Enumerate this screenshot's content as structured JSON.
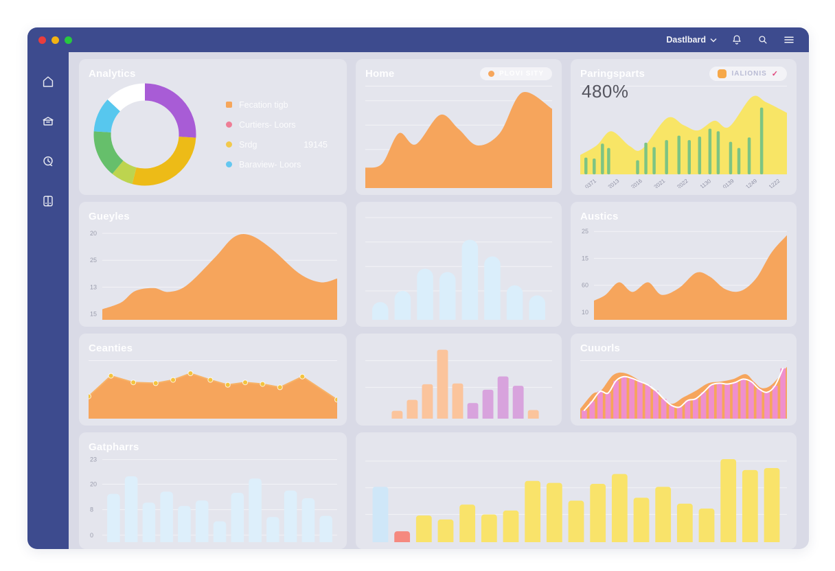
{
  "theme": {
    "navy": "#3d4b8e",
    "content_bg": "#d9dae6",
    "card_bg": "rgba(255,255,255,0.30)",
    "orange": "#f6a55c",
    "yellow": "#f8e566",
    "pink": "#ef8fcd",
    "light_blue": "#daeefb"
  },
  "topbar": {
    "title": "Dastlbard",
    "traffic_lights": [
      "#e93d3d",
      "#f3b313",
      "#27c93f"
    ],
    "icons": [
      "bell-icon",
      "search-icon",
      "menu-icon"
    ]
  },
  "sidebar": {
    "items": [
      "home",
      "archive",
      "history",
      "boards"
    ]
  },
  "cards": {
    "analytics": {
      "title": "Analytics",
      "legend": [
        {
          "label": "Fecation tigb",
          "color": "#f6a65b",
          "shape": "square"
        },
        {
          "label": "Curtiers- Loors",
          "color": "#ee7d96",
          "shape": "circle"
        },
        {
          "label": "Srdg",
          "value": "19145",
          "color": "#f2c94c",
          "shape": "circle"
        },
        {
          "label": "Baraview- Loors",
          "color": "#64c7f0",
          "shape": "circle"
        }
      ]
    },
    "home": {
      "title": "Home",
      "badge": {
        "label": "PLOVI SITY",
        "dot_color": "#f6a65b"
      }
    },
    "paringsparts": {
      "title": "Paringsparts",
      "big_value": "480%",
      "badge": {
        "label": "IALIONIS",
        "check": "✓"
      }
    },
    "gueyles": {
      "title": "Gueyles"
    },
    "austics": {
      "title": "Austics"
    },
    "ceanties": {
      "title": "Ceanties"
    },
    "cuuorls": {
      "title": "Cuuorls"
    },
    "gatpharrs": {
      "title": "Gatpharrs"
    }
  },
  "chart_data": [
    {
      "id": "analytics-donut",
      "type": "pie",
      "donut": true,
      "segments": [
        {
          "color": "#a85cd6",
          "value": 26
        },
        {
          "color": "#edbb17",
          "value": 28
        },
        {
          "color": "#bdd44f",
          "value": 7
        },
        {
          "color": "#66bf6b",
          "value": 15
        },
        {
          "color": "#57c7ee",
          "value": 11
        },
        {
          "color": "#ffffff",
          "value": 13
        }
      ]
    },
    {
      "id": "home-area",
      "type": "area",
      "color": "#f6a55c",
      "ymax": 10,
      "grid": [
        0.14,
        0.38,
        0.62,
        0.86
      ],
      "points": [
        [
          0,
          2.0
        ],
        [
          9,
          2.4
        ],
        [
          18,
          5.4
        ],
        [
          27,
          4.3
        ],
        [
          40,
          7.2
        ],
        [
          50,
          5.8
        ],
        [
          60,
          4.2
        ],
        [
          72,
          5.4
        ],
        [
          84,
          9.4
        ],
        [
          100,
          7.8
        ]
      ]
    },
    {
      "id": "parings-combo",
      "type": "combo",
      "area_color": "#f8e566",
      "bar_color": "#7dc483",
      "ymax": 10,
      "area": [
        [
          0,
          2.2
        ],
        [
          8,
          3.3
        ],
        [
          15,
          4.9
        ],
        [
          24,
          3.2
        ],
        [
          30,
          2.9
        ],
        [
          42,
          6.4
        ],
        [
          50,
          5.6
        ],
        [
          57,
          5.0
        ],
        [
          65,
          6.1
        ],
        [
          72,
          5.4
        ],
        [
          83,
          8.8
        ],
        [
          90,
          8.2
        ],
        [
          100,
          7.0
        ]
      ],
      "bars": [
        [
          2,
          1.9
        ],
        [
          6,
          1.8
        ],
        [
          10,
          3.5
        ],
        [
          13,
          3.0
        ],
        [
          27,
          1.6
        ],
        [
          31,
          3.6
        ],
        [
          35,
          3.1
        ],
        [
          41,
          3.9
        ],
        [
          47,
          4.4
        ],
        [
          52,
          3.9
        ],
        [
          57,
          4.3
        ],
        [
          62,
          5.2
        ],
        [
          66,
          4.9
        ],
        [
          72,
          3.7
        ],
        [
          76,
          3.0
        ],
        [
          81,
          4.2
        ],
        [
          87,
          7.6
        ]
      ],
      "x_labels": [
        "0371",
        "2013",
        "2016",
        "2021",
        "2022",
        "1130",
        "0139",
        "1249",
        "1222"
      ]
    },
    {
      "id": "gueyles-area",
      "type": "area",
      "color": "#f6a55c",
      "ymax": 10,
      "grid": [
        0.1,
        0.38,
        0.66,
        0.94
      ],
      "y_labels": [
        "20",
        "25",
        "13",
        "15"
      ],
      "points": [
        [
          0,
          1.1
        ],
        [
          8,
          1.8
        ],
        [
          14,
          3.0
        ],
        [
          22,
          3.3
        ],
        [
          28,
          2.9
        ],
        [
          36,
          3.6
        ],
        [
          48,
          6.5
        ],
        [
          56,
          8.6
        ],
        [
          63,
          8.8
        ],
        [
          72,
          7.4
        ],
        [
          84,
          4.8
        ],
        [
          93,
          3.9
        ],
        [
          100,
          4.3
        ]
      ]
    },
    {
      "id": "row2mid-bars",
      "type": "bar",
      "color": "#daeefb",
      "ymax": 10,
      "rounded": 12,
      "grid": [
        0.08,
        0.3,
        0.52,
        0.74
      ],
      "inset_l": 0.02,
      "inset_r": 0.02,
      "values": [
        1.6,
        2.6,
        4.6,
        4.3,
        7.2,
        5.7,
        3.1,
        2.2
      ]
    },
    {
      "id": "austics-area",
      "type": "area",
      "color": "#f6a55c",
      "ymax": 10,
      "grid": [
        0.08,
        0.36,
        0.64,
        0.92
      ],
      "y_labels": [
        "25",
        "15",
        "60",
        "10"
      ],
      "points": [
        [
          0,
          2.0
        ],
        [
          6,
          2.6
        ],
        [
          13,
          3.9
        ],
        [
          20,
          2.9
        ],
        [
          28,
          3.9
        ],
        [
          35,
          2.6
        ],
        [
          44,
          3.3
        ],
        [
          53,
          4.9
        ],
        [
          60,
          4.5
        ],
        [
          68,
          3.2
        ],
        [
          76,
          3.0
        ],
        [
          84,
          4.3
        ],
        [
          92,
          7.0
        ],
        [
          100,
          8.8
        ]
      ]
    },
    {
      "id": "ceanties-line",
      "type": "line-area",
      "color": "#f6a55c",
      "line_color": "#f7b267",
      "marker_color": "#f3c33e",
      "ymax": 7,
      "points": [
        [
          0,
          2.7
        ],
        [
          9,
          5.2
        ],
        [
          18,
          4.4
        ],
        [
          27,
          4.3
        ],
        [
          34,
          4.7
        ],
        [
          41,
          5.5
        ],
        [
          49,
          4.7
        ],
        [
          56,
          4.1
        ],
        [
          63,
          4.4
        ],
        [
          70,
          4.2
        ],
        [
          77,
          3.8
        ],
        [
          86,
          5.1
        ],
        [
          100,
          2.3
        ]
      ]
    },
    {
      "id": "row3mid-bars",
      "type": "bar",
      "ymax": 10,
      "rounded": 3,
      "grid": [
        0.26,
        0.6
      ],
      "inset_l": 0.13,
      "inset_r": 0.06,
      "values": [
        1.0,
        2.4,
        4.4,
        8.8,
        4.5,
        2.0,
        3.7,
        5.4,
        4.2,
        1.1
      ],
      "colors": [
        "#fbc49c",
        "#fbc49c",
        "#fbc49c",
        "#fbc49c",
        "#fbc49c",
        "#d8a3dd",
        "#d8a3dd",
        "#d8a3dd",
        "#d8a3dd",
        "#fbc49c"
      ]
    },
    {
      "id": "cuuorls-combo",
      "type": "wave-bars",
      "area_color": "#f6a55c",
      "bar_color": "#ef8fcd",
      "line_color": "#ffffff",
      "ymax": 7,
      "area": [
        [
          0,
          1.2
        ],
        [
          6,
          3.0
        ],
        [
          10,
          3.4
        ],
        [
          16,
          5.3
        ],
        [
          22,
          5.5
        ],
        [
          30,
          4.4
        ],
        [
          38,
          3.0
        ],
        [
          44,
          1.8
        ],
        [
          50,
          2.6
        ],
        [
          56,
          3.4
        ],
        [
          62,
          4.3
        ],
        [
          68,
          4.5
        ],
        [
          74,
          4.8
        ],
        [
          80,
          5.4
        ],
        [
          84,
          4.5
        ],
        [
          88,
          3.7
        ],
        [
          93,
          4.2
        ],
        [
          100,
          6.3
        ]
      ],
      "bars": [
        1.0,
        2.1,
        3.3,
        3.1,
        4.6,
        5.1,
        4.9,
        4.5,
        4.1,
        3.4,
        2.4,
        1.6,
        1.4,
        2.2,
        2.4,
        3.2,
        4.1,
        4.3,
        4.2,
        4.4,
        4.8,
        4.5,
        3.6,
        3.2,
        4.0,
        6.1
      ]
    },
    {
      "id": "gatpharrs-bars",
      "type": "bar",
      "color": "#ddeffb",
      "ymax": 8,
      "rounded": 5,
      "grid": [
        0.06,
        0.34,
        0.63,
        0.92
      ],
      "y_labels": [
        "23",
        "20",
        "8",
        "0"
      ],
      "inset_l": 0.01,
      "inset_r": 0.01,
      "values": [
        4.4,
        6.0,
        3.6,
        4.6,
        3.3,
        3.8,
        1.9,
        4.5,
        5.8,
        2.3,
        4.7,
        4.0,
        2.4
      ]
    },
    {
      "id": "bottom-bars",
      "type": "bar",
      "ymax": 10,
      "rounded": 4,
      "grid": [
        0.18,
        0.45,
        0.72
      ],
      "inset_l": 0.01,
      "inset_r": 0.01,
      "values": [
        5.6,
        1.1,
        2.7,
        2.3,
        3.8,
        2.8,
        3.2,
        6.2,
        6.0,
        4.2,
        5.9,
        6.9,
        4.5,
        5.6,
        3.9,
        3.4,
        8.4,
        7.3,
        7.5
      ],
      "colors": [
        "#cfe7f8",
        "#f5897f",
        "#f9e36a",
        "#f9e36a",
        "#f9e36a",
        "#f9e36a",
        "#f9e36a",
        "#f9e36a",
        "#f9e36a",
        "#f9e36a",
        "#f9e36a",
        "#f9e36a",
        "#f9e36a",
        "#f9e36a",
        "#f9e36a",
        "#f9e36a",
        "#f9e36a",
        "#f9e36a",
        "#f9e36a"
      ]
    }
  ]
}
